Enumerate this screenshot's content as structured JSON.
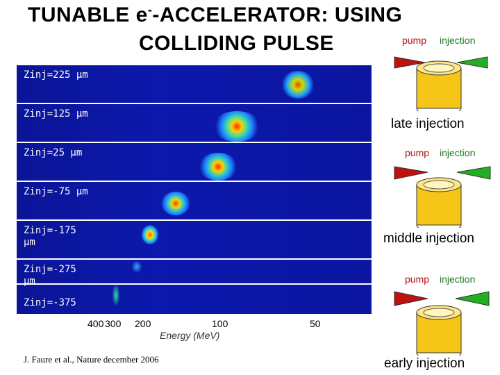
{
  "title": {
    "line1_prefix": "TUNABLE e",
    "line1_sup": "-",
    "line1_suffix": "-ACCELERATOR: USING",
    "line2": "COLLIDING PULSE"
  },
  "panels": [
    {
      "label": "Zinj=225 µm"
    },
    {
      "label": "Zinj=125 µm"
    },
    {
      "label": "Zinj=25 µm"
    },
    {
      "label": "Zinj=-75 µm"
    },
    {
      "label": "Zinj=-175 µm"
    },
    {
      "label": "Zinj=-275 µm"
    },
    {
      "label": "Zinj=-375"
    }
  ],
  "axis": {
    "ticks": [
      "400",
      "300",
      "200",
      "100",
      "50"
    ],
    "label": "Energy (MeV)"
  },
  "reference": "J. Faure et al., Nature december 2006",
  "diagrams": [
    {
      "pump": "pump",
      "injection": "injection",
      "caption": "late injection"
    },
    {
      "pump": "pump",
      "injection": "injection",
      "caption": "middle injection"
    },
    {
      "pump": "pump",
      "injection": "injection",
      "caption": "early injection"
    }
  ],
  "colors": {
    "panel_bg": "#0b16a8",
    "pump_arrow": "#c01010",
    "injection_arrow": "#20b020",
    "nozzle": "#f5c518"
  }
}
